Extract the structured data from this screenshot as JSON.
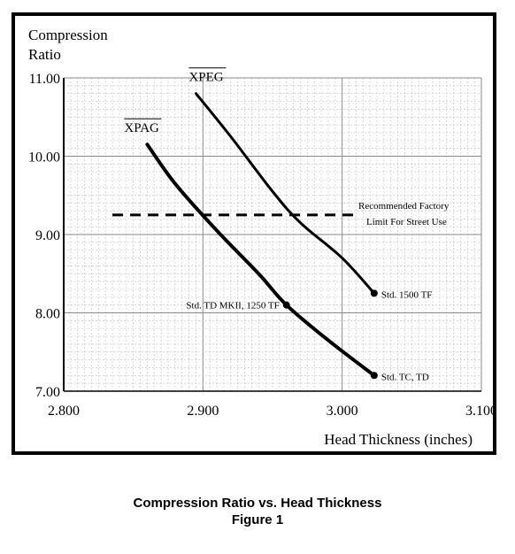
{
  "chart_data": {
    "type": "line",
    "ylabel_line1": "Compression",
    "ylabel_line2": "Ratio",
    "xlabel": "Head Thickness (inches)",
    "xlim": [
      2.8,
      3.1
    ],
    "ylim": [
      7.0,
      11.0
    ],
    "x_ticks": [
      "2.800",
      "2.900",
      "3.000",
      "3.100"
    ],
    "y_ticks": [
      "7.00",
      "8.00",
      "9.00",
      "10.00",
      "11.00"
    ],
    "grid": true,
    "series": [
      {
        "name": "XPEG",
        "points": [
          [
            2.895,
            10.8
          ],
          [
            2.92,
            10.25
          ],
          [
            2.95,
            9.55
          ],
          [
            2.97,
            9.15
          ],
          [
            3.0,
            8.7
          ],
          [
            3.023,
            8.25
          ]
        ],
        "end_label": "Std. 1500 TF"
      },
      {
        "name": "XPAG",
        "points": [
          [
            2.86,
            10.15
          ],
          [
            2.88,
            9.65
          ],
          [
            2.91,
            9.05
          ],
          [
            2.94,
            8.5
          ],
          [
            2.96,
            8.1
          ],
          [
            2.99,
            7.65
          ],
          [
            3.023,
            7.2
          ]
        ],
        "marker_label": "Std. TD MKII, 1250 TF",
        "marker_point": [
          2.96,
          8.1
        ],
        "end_label": "Std. TC, TD"
      }
    ],
    "reference_line": {
      "y": 9.25,
      "x_range": [
        2.835,
        3.01
      ],
      "label_line1": "Recommended Factory",
      "label_line2": "Limit For Street Use"
    }
  },
  "caption": {
    "title": "Compression Ratio vs. Head Thickness",
    "figure": "Figure 1"
  }
}
